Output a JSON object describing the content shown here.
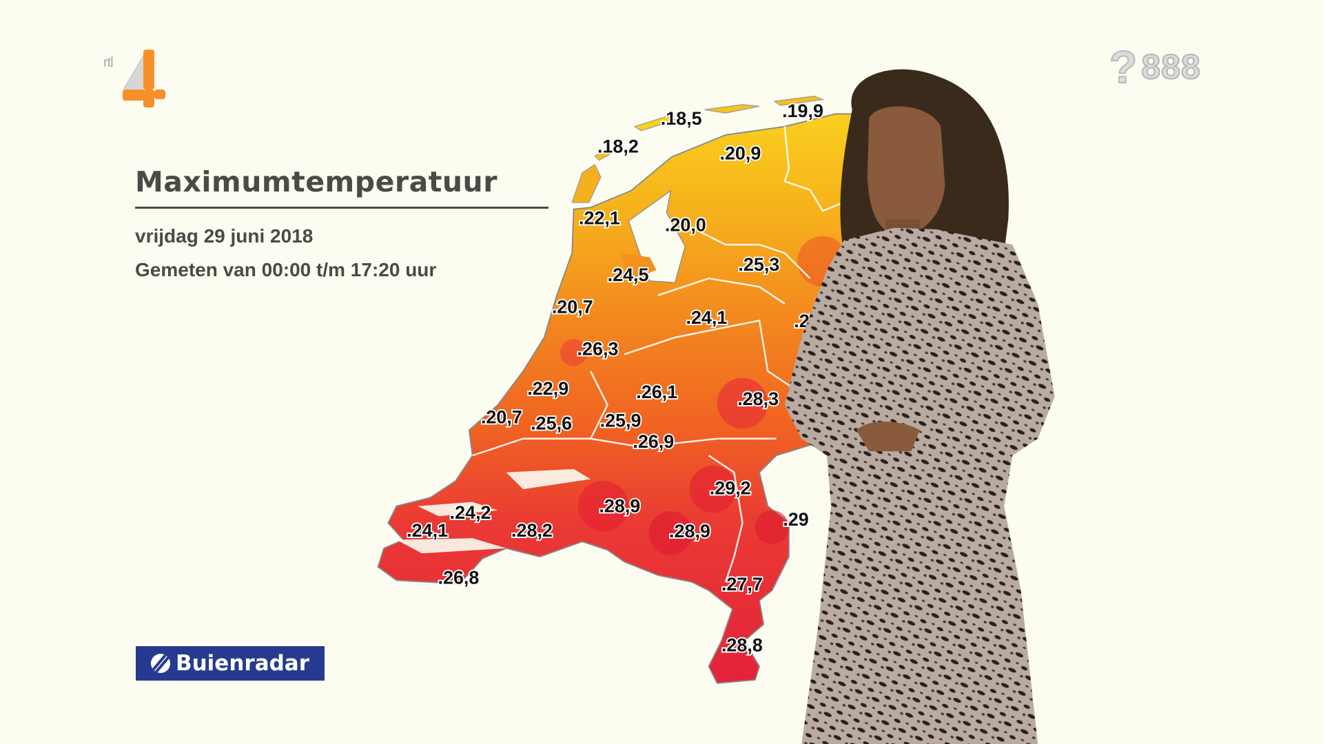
{
  "channel_logo": {
    "text": "rtl 4",
    "color": "#f7902a"
  },
  "teletext": {
    "page": "888"
  },
  "header": {
    "title": "Maximumtemperatuur",
    "date": "vrijdag 29 juni 2018",
    "period": "Gemeten van 00:00 t/m 17:20 uur"
  },
  "sponsor": {
    "label": "Buienradar",
    "color": "#263b8f"
  },
  "map": {
    "colors": {
      "cool": "#f7c51c",
      "mid": "#f3891f",
      "warm": "#ee5a24",
      "hot": "#e6223a"
    },
    "stations": [
      {
        "value": "18,5"
      },
      {
        "value": "19,9"
      },
      {
        "value": "18,2"
      },
      {
        "value": "20,9"
      },
      {
        "value": "22,1"
      },
      {
        "value": "20,0"
      },
      {
        "value": "25,3"
      },
      {
        "value": "24,5"
      },
      {
        "value": "20,7"
      },
      {
        "value": "24,1"
      },
      {
        "value": "27"
      },
      {
        "value": "26,3"
      },
      {
        "value": "26,1"
      },
      {
        "value": "28,3"
      },
      {
        "value": "22,9"
      },
      {
        "value": "20,7"
      },
      {
        "value": "25,6"
      },
      {
        "value": "25,9"
      },
      {
        "value": "26,9"
      },
      {
        "value": "29,2"
      },
      {
        "value": "28,9"
      },
      {
        "value": "28,9"
      },
      {
        "value": "24,2"
      },
      {
        "value": "24,1"
      },
      {
        "value": "28,2"
      },
      {
        "value": "29"
      },
      {
        "value": "27,7"
      },
      {
        "value": "26,8"
      },
      {
        "value": "28,8"
      }
    ]
  }
}
